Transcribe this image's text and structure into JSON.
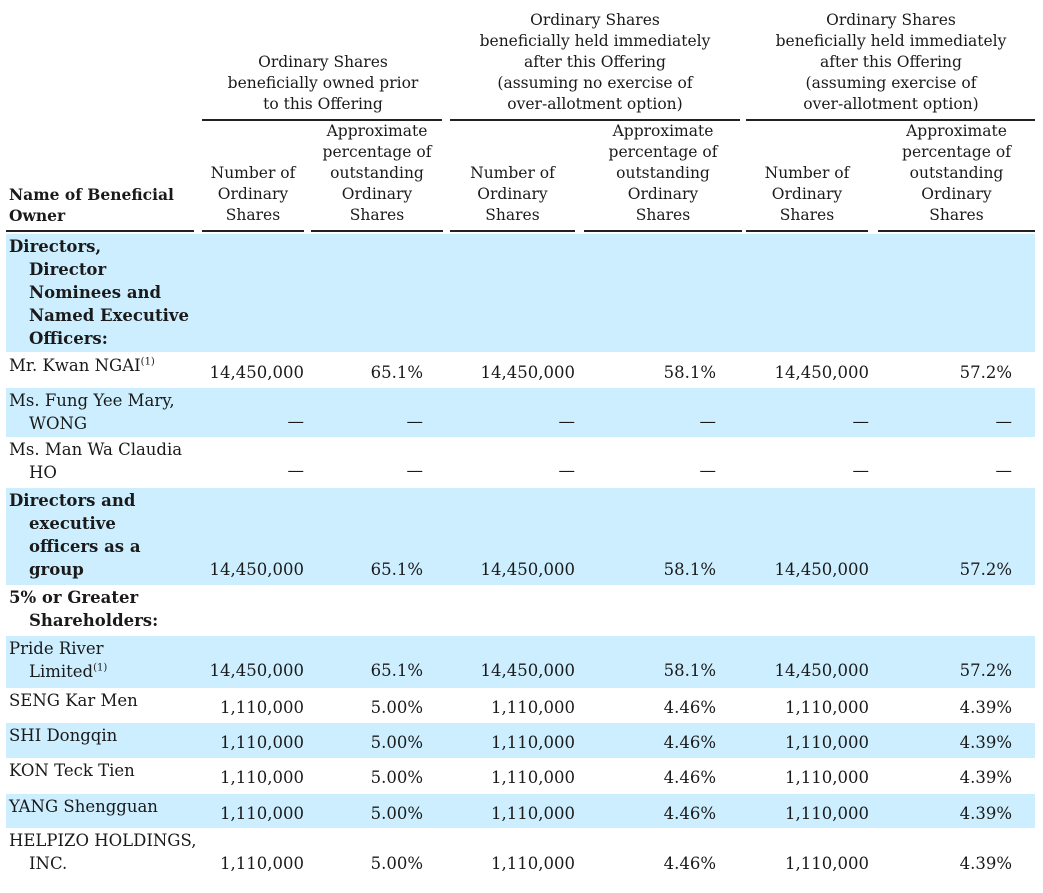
{
  "table": {
    "header": {
      "name_col": "Name of Beneficial\nOwner",
      "group1": "Ordinary Shares\nbeneficially  owned  prior\nto this Offering",
      "group2": "Ordinary Shares\nbeneficially  held  immediately\nafter this Offering\n(assuming no exercise of\nover-allotment option)",
      "group3": "Ordinary Shares\nbeneficially  held  immediately\nafter this Offering\n(assuming exercise of\nover-allotment  option)",
      "col_number": "Number of\nOrdinary\nShares",
      "col_pct": "Approximate\npercentage  of\noutstanding\nOrdinary\nShares"
    },
    "rows": [
      {
        "name": "Directors,\nDirector\nNominees and\nNamed  Executive\nOfficers:",
        "bold": true,
        "shaded": true,
        "values": [
          "",
          "",
          "",
          "",
          "",
          ""
        ]
      },
      {
        "name": "Mr.  Kwan NGAI",
        "note": "(1)",
        "values": [
          "14,450,000",
          "65.1%",
          "14,450,000",
          "58.1%",
          "14,450,000",
          "57.2%"
        ]
      },
      {
        "name": "Ms.  Fung Yee Mary,\nWONG",
        "shaded": true,
        "values": [
          "—",
          "—",
          "—",
          "—",
          "—",
          "—"
        ]
      },
      {
        "name": "Ms.  Man Wa Claudia\nHO",
        "values": [
          "—",
          "—",
          "—",
          "—",
          "—",
          "—"
        ]
      },
      {
        "name": "Directors and\nexecutive\nofficers as a\ngroup",
        "bold": true,
        "shaded": true,
        "values": [
          "14,450,000",
          "65.1%",
          "14,450,000",
          "58.1%",
          "14,450,000",
          "57.2%"
        ]
      },
      {
        "name": "5% or Greater\nShareholders:",
        "bold": true,
        "values": [
          "",
          "",
          "",
          "",
          "",
          ""
        ]
      },
      {
        "name": "Pride River\nLimited",
        "note": "(1)",
        "shaded": true,
        "values": [
          "14,450,000",
          "65.1%",
          "14,450,000",
          "58.1%",
          "14,450,000",
          "57.2%"
        ]
      },
      {
        "name": "SENG Kar Men",
        "values": [
          "1,110,000",
          "5.00%",
          "1,110,000",
          "4.46%",
          "1,110,000",
          "4.39%"
        ]
      },
      {
        "name": "SHI Dongqin",
        "shaded": true,
        "values": [
          "1,110,000",
          "5.00%",
          "1,110,000",
          "4.46%",
          "1,110,000",
          "4.39%"
        ]
      },
      {
        "name": "KON Teck Tien",
        "values": [
          "1,110,000",
          "5.00%",
          "1,110,000",
          "4.46%",
          "1,110,000",
          "4.39%"
        ]
      },
      {
        "name": "YANG Shengguan",
        "shaded": true,
        "values": [
          "1,110,000",
          "5.00%",
          "1,110,000",
          "4.46%",
          "1,110,000",
          "4.39%"
        ]
      },
      {
        "name": "HELPIZO HOLDINGS,\nINC.",
        "values": [
          "1,110,000",
          "5.00%",
          "1,110,000",
          "4.46%",
          "1,110,000",
          "4.39%"
        ]
      }
    ]
  },
  "colors": {
    "band": "#cceeff",
    "rule": "#222222"
  }
}
